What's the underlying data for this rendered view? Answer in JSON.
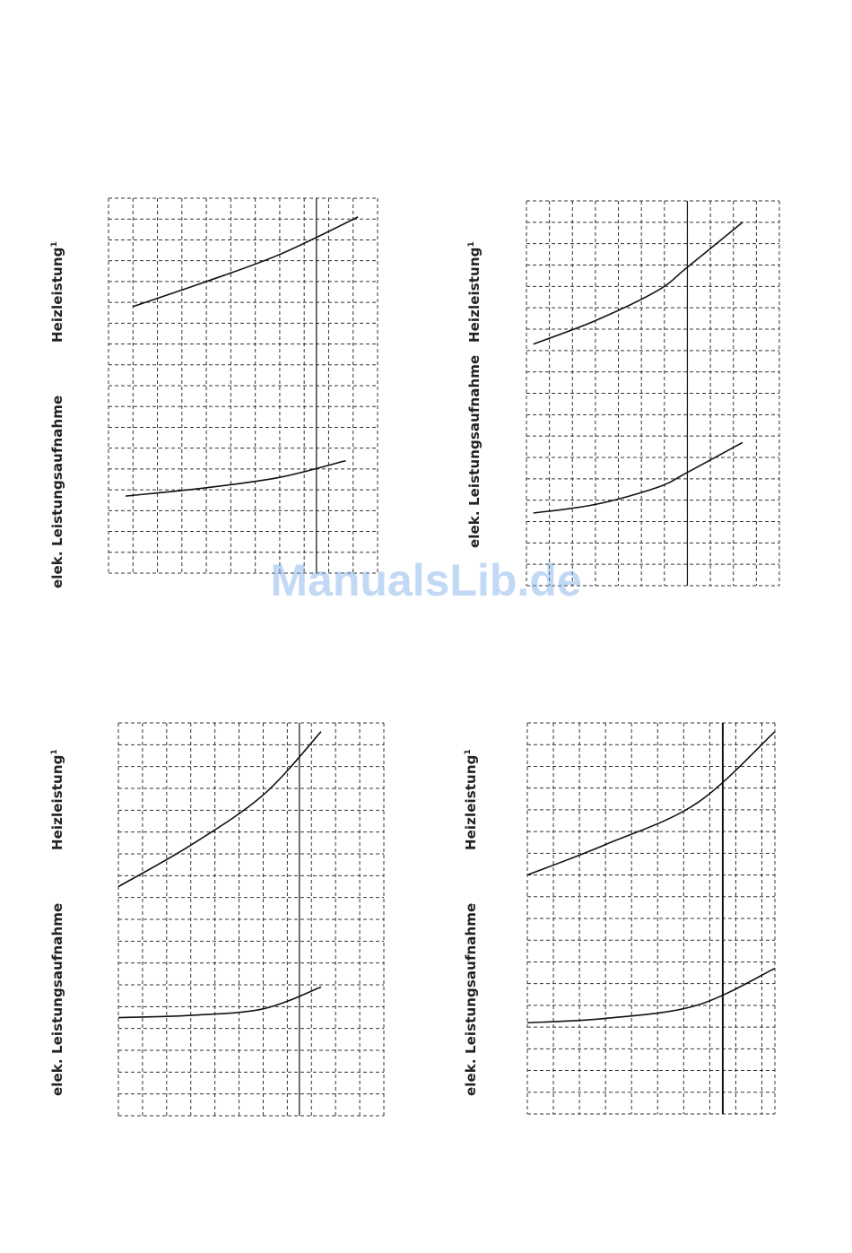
{
  "watermark": {
    "text": "ManualsLib.de"
  },
  "labels": {
    "power_input": "elek. Leistungsaufnahme",
    "heating_output": "Heizleistung",
    "heating_output_footnote": "1"
  },
  "chart_data": [
    {
      "type": "line",
      "grid": true,
      "xlim": [
        0,
        11
      ],
      "ylim": [
        0,
        18
      ],
      "xlabel": "",
      "ylabel": "elek. Leistungsaufnahme / Heizleistung¹",
      "vertical_marker_x": 8.5,
      "series": [
        {
          "x": [
            1.0,
            4.0,
            7.0,
            10.2
          ],
          "y": [
            12.8,
            14.0,
            15.3,
            17.1
          ]
        },
        {
          "x": [
            0.7,
            4.0,
            7.0,
            9.7
          ],
          "y": [
            3.7,
            4.1,
            4.6,
            5.4
          ]
        }
      ]
    },
    {
      "type": "line",
      "grid": true,
      "xlim": [
        0,
        11
      ],
      "ylim": [
        0,
        18
      ],
      "xlabel": "",
      "ylabel": "elek. Leistungsaufnahme / Heizleistung¹",
      "vertical_marker_x": 7.0,
      "series": [
        {
          "x": [
            0.3,
            3.0,
            5.7,
            7.0,
            9.4
          ],
          "y": [
            11.3,
            12.4,
            13.8,
            14.9,
            17.0
          ]
        },
        {
          "x": [
            0.3,
            3.0,
            5.7,
            7.0,
            9.4
          ],
          "y": [
            3.4,
            3.8,
            4.6,
            5.3,
            6.7
          ]
        }
      ]
    },
    {
      "type": "line",
      "grid": true,
      "xlim": [
        0,
        11
      ],
      "ylim": [
        0,
        18
      ],
      "xlabel": "",
      "ylabel": "elek. Leistungsaufnahme / Heizleistung¹",
      "vertical_marker_x": 7.5,
      "series": [
        {
          "x": [
            0.0,
            3.0,
            6.0,
            8.4
          ],
          "y": [
            10.5,
            12.4,
            14.7,
            17.6
          ]
        },
        {
          "x": [
            0.0,
            3.0,
            6.0,
            8.4
          ],
          "y": [
            4.5,
            4.6,
            4.9,
            5.9
          ]
        }
      ]
    },
    {
      "type": "line",
      "grid": true,
      "xlim": [
        0,
        9.5
      ],
      "ylim": [
        0,
        18
      ],
      "xlabel": "",
      "ylabel": "elek. Leistungsaufnahme / Heizleistung¹",
      "vertical_marker_x": 7.5,
      "series": [
        {
          "x": [
            0.0,
            3.0,
            6.5,
            9.5
          ],
          "y": [
            11.0,
            12.4,
            14.3,
            17.6
          ]
        },
        {
          "x": [
            0.0,
            3.0,
            6.5,
            9.5
          ],
          "y": [
            4.2,
            4.4,
            5.0,
            6.7
          ]
        }
      ]
    }
  ]
}
